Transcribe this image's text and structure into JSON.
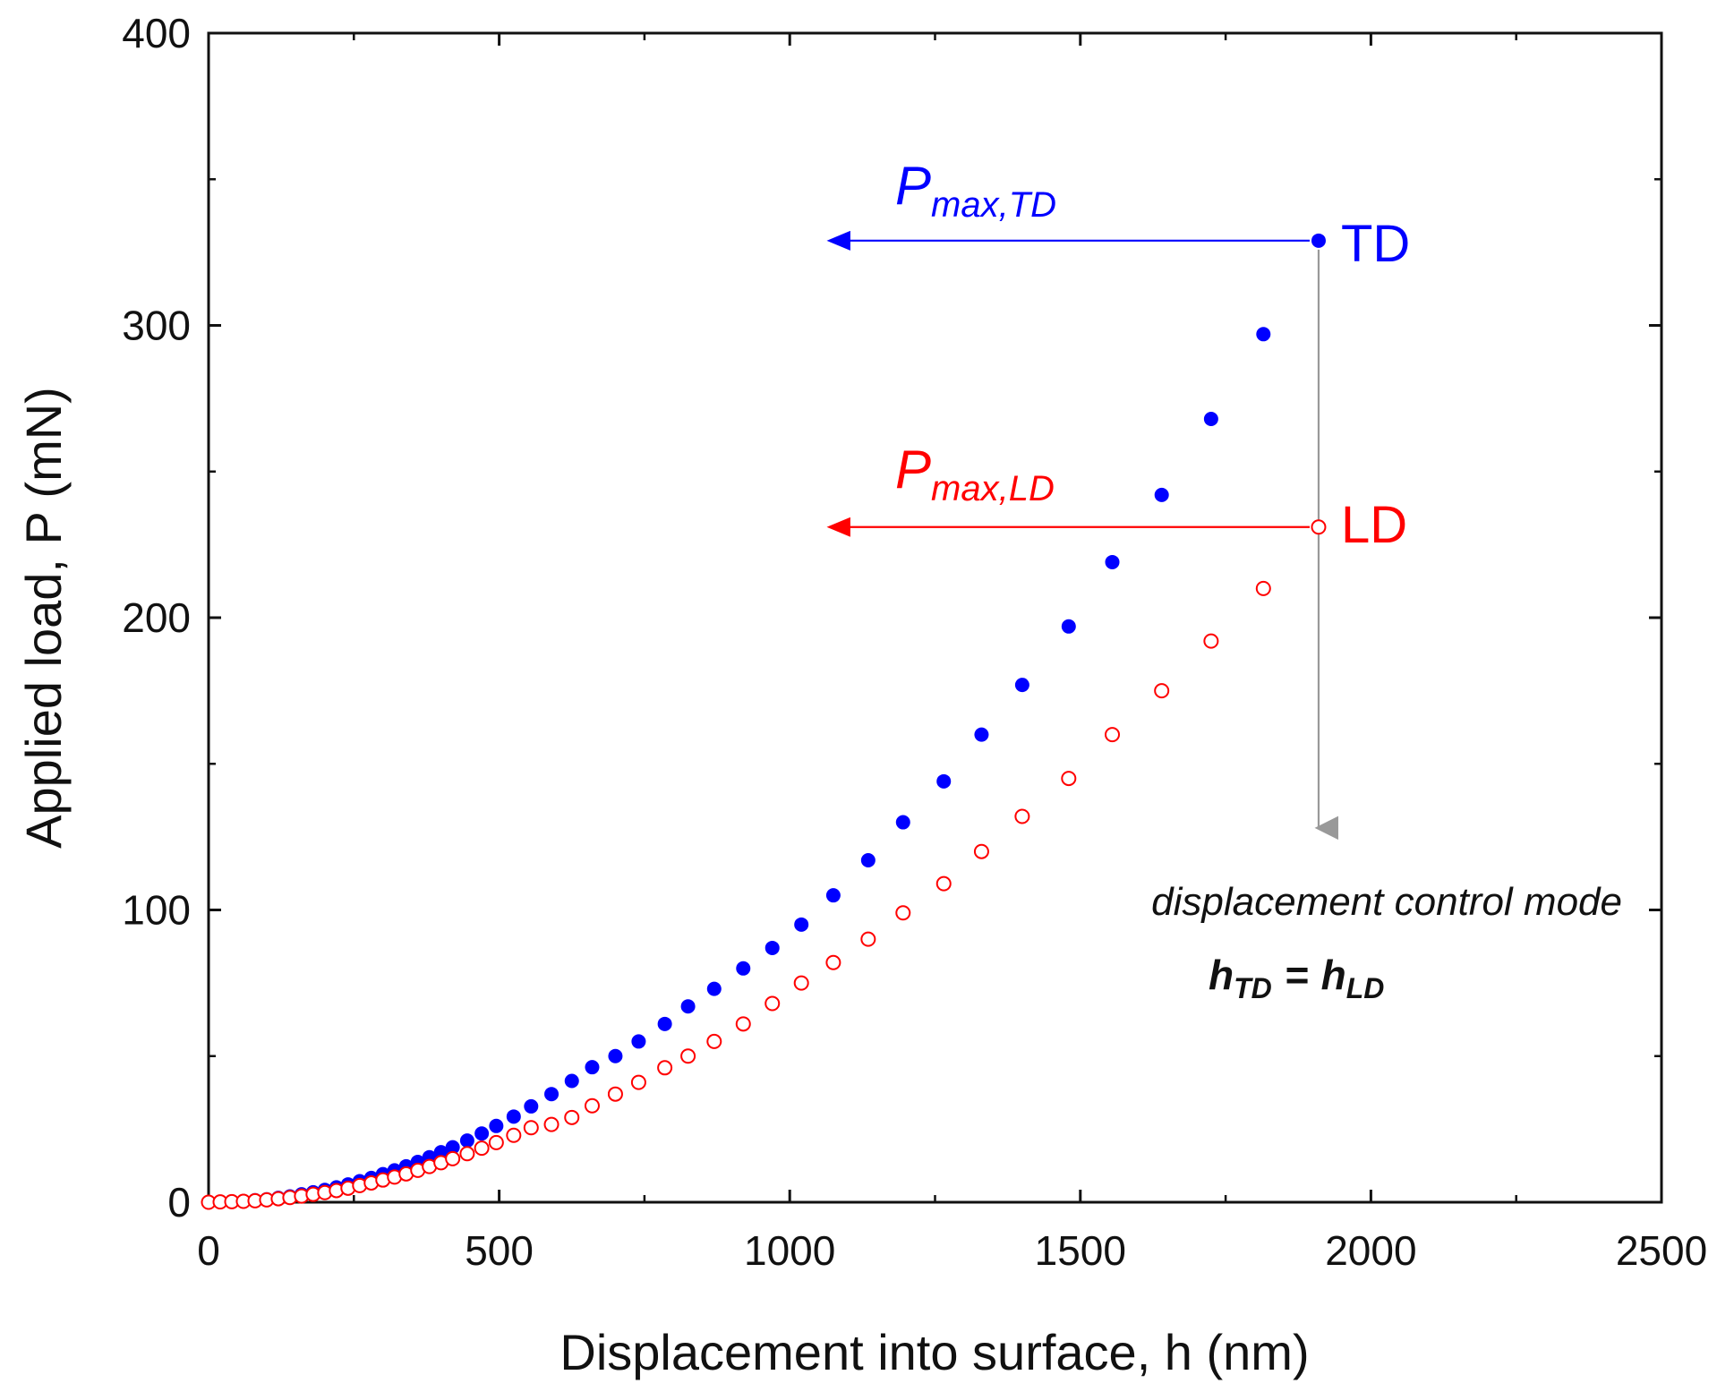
{
  "chart_data": {
    "type": "scatter",
    "title": "",
    "xlabel": "Displacement into surface, h (nm)",
    "ylabel": "Applied load, P (mN)",
    "xlim": [
      0,
      2500
    ],
    "ylim": [
      0,
      400
    ],
    "x_ticks": [
      0,
      500,
      1000,
      1500,
      2000,
      2500
    ],
    "y_ticks": [
      0,
      100,
      200,
      300,
      400
    ],
    "x_tick_labels": [
      "0",
      "500",
      "1000",
      "1500",
      "2000",
      "2500"
    ],
    "y_tick_labels": [
      "0",
      "100",
      "200",
      "300",
      "400"
    ],
    "grid": false,
    "series": [
      {
        "name": "TD",
        "marker": "filled-circle",
        "color": "#0000ff",
        "x": [
          0,
          20,
          40,
          60,
          80,
          100,
          120,
          140,
          160,
          180,
          200,
          220,
          240,
          260,
          280,
          300,
          320,
          340,
          360,
          380,
          400,
          420,
          445,
          470,
          495,
          525,
          555,
          590,
          625,
          660,
          700,
          740,
          785,
          825,
          870,
          920,
          970,
          1020,
          1075,
          1135,
          1195,
          1265,
          1330,
          1400,
          1480,
          1555,
          1640,
          1725,
          1815,
          1910
        ],
        "y": [
          0,
          0.1,
          0.2,
          0.4,
          0.7,
          1.0,
          1.5,
          2.0,
          2.7,
          3.4,
          4.2,
          5.1,
          6.1,
          7.2,
          8.3,
          9.6,
          10.9,
          12.3,
          13.8,
          15.4,
          17.1,
          18.8,
          21.1,
          23.5,
          26.1,
          29.3,
          32.8,
          37.0,
          41.5,
          46.2,
          50.0,
          55.0,
          61.0,
          67.0,
          73.0,
          80.0,
          87.0,
          95.0,
          105.0,
          117.0,
          130.0,
          144.0,
          160.0,
          177.0,
          197.0,
          219.0,
          242.0,
          268.0,
          297.0,
          329.0
        ]
      },
      {
        "name": "LD",
        "marker": "open-circle",
        "color": "#ff0000",
        "x": [
          0,
          20,
          40,
          60,
          80,
          100,
          120,
          140,
          160,
          180,
          200,
          220,
          240,
          260,
          280,
          300,
          320,
          340,
          360,
          380,
          400,
          420,
          445,
          470,
          495,
          525,
          555,
          590,
          625,
          660,
          700,
          740,
          785,
          825,
          870,
          920,
          970,
          1020,
          1075,
          1135,
          1195,
          1265,
          1330,
          1400,
          1480,
          1555,
          1640,
          1725,
          1815,
          1910
        ],
        "y": [
          0,
          0.1,
          0.2,
          0.3,
          0.5,
          0.8,
          1.2,
          1.6,
          2.1,
          2.7,
          3.3,
          4.0,
          4.8,
          5.7,
          6.6,
          7.6,
          8.6,
          9.7,
          10.9,
          12.2,
          13.5,
          14.9,
          16.6,
          18.5,
          20.4,
          22.9,
          25.5,
          26.6,
          29.0,
          33.0,
          37.0,
          41.0,
          46.0,
          50.0,
          55.0,
          61.0,
          68.0,
          75.0,
          82.0,
          90.0,
          99.0,
          109.0,
          120.0,
          132.0,
          145.0,
          160.0,
          175.0,
          192.0,
          210.0,
          231.0
        ]
      }
    ],
    "annotations": {
      "td_label": "TD",
      "ld_label": "LD",
      "pmax_td_main": "P",
      "pmax_td_sub": "max,TD",
      "pmax_ld_main": "P",
      "pmax_ld_sub": "max,LD",
      "td_arrow": {
        "from_x": 1910,
        "to_x": 1055,
        "y": 329,
        "color": "#0000ff"
      },
      "ld_arrow": {
        "from_x": 1910,
        "to_x": 1055,
        "y": 231,
        "color": "#ff0000"
      },
      "vertical_arrow": {
        "x": 1910,
        "from_y": 329,
        "to_y": 125,
        "color": "#999999"
      },
      "mode_text": "displacement control mode",
      "h_td_main": "h",
      "h_td_sub": "TD",
      "equals": "=",
      "h_ld_main": "h",
      "h_ld_sub": "LD"
    }
  }
}
